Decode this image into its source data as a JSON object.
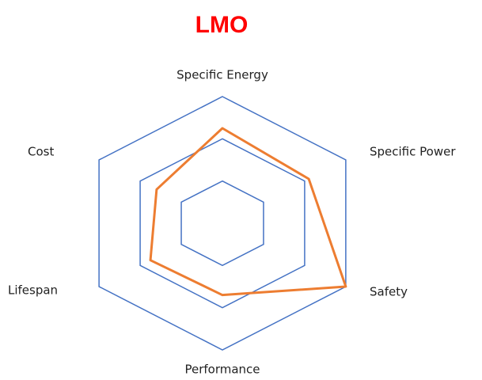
{
  "chart_data": {
    "type": "radar",
    "title": "LMO",
    "title_color": "#ff0000",
    "categories": [
      "Specific Energy",
      "Specific Power",
      "Safety",
      "Performance",
      "Lifespan",
      "Cost"
    ],
    "values": [
      2.25,
      2.1,
      3,
      1.7,
      1.75,
      1.6
    ],
    "color": "#ed7d31",
    "grid_color": "#4472c4",
    "rlim": [
      0,
      3
    ],
    "rticks": [
      1,
      2,
      3
    ],
    "grid": true
  }
}
